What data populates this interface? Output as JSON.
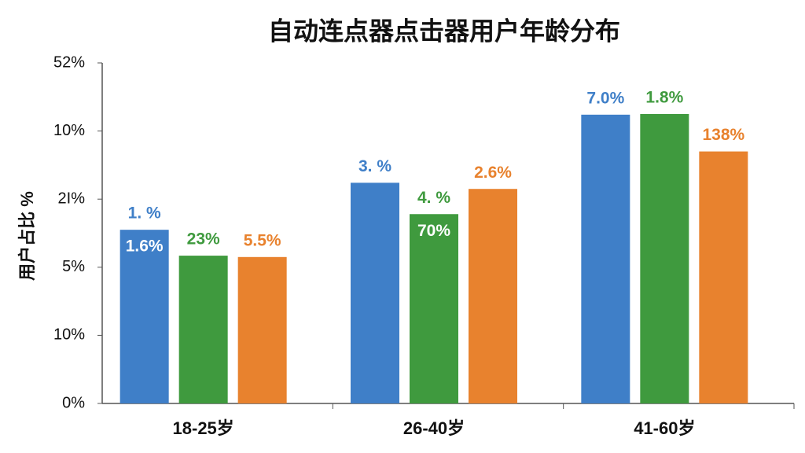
{
  "chart_data": {
    "type": "bar",
    "title": "自动连点器点击器用户年龄分布",
    "y_label": "用户占比 %",
    "categories": [
      "18-25岁",
      "26-40岁",
      "41-60岁"
    ],
    "series": [
      {
        "color": "#3f7fc8",
        "values": [
          2.55,
          3.24,
          4.24
        ],
        "labels": [
          [
            "1. %",
            "1.6%"
          ],
          [
            "3. %"
          ],
          [
            "7.0%"
          ]
        ]
      },
      {
        "color": "#3f9a3e",
        "values": [
          2.17,
          2.78,
          4.25
        ],
        "labels": [
          [
            "23%"
          ],
          [
            "4. %",
            "70%"
          ],
          [
            "1.8%"
          ]
        ]
      },
      {
        "color": "#e8822e",
        "values": [
          2.15,
          3.15,
          3.7
        ],
        "labels": [
          [
            "5.5%"
          ],
          [
            "2.6%"
          ],
          [
            "138%"
          ]
        ]
      }
    ],
    "ylim": [
      0,
      5
    ],
    "yticks": [
      {
        "value": 0,
        "label": "0%"
      },
      {
        "value": 1,
        "label": "10%"
      },
      {
        "value": 2,
        "label": "5%"
      },
      {
        "value": 3,
        "label": "2I%"
      },
      {
        "value": 4,
        "label": "10%"
      },
      {
        "value": 5,
        "label": "52%"
      }
    ]
  }
}
